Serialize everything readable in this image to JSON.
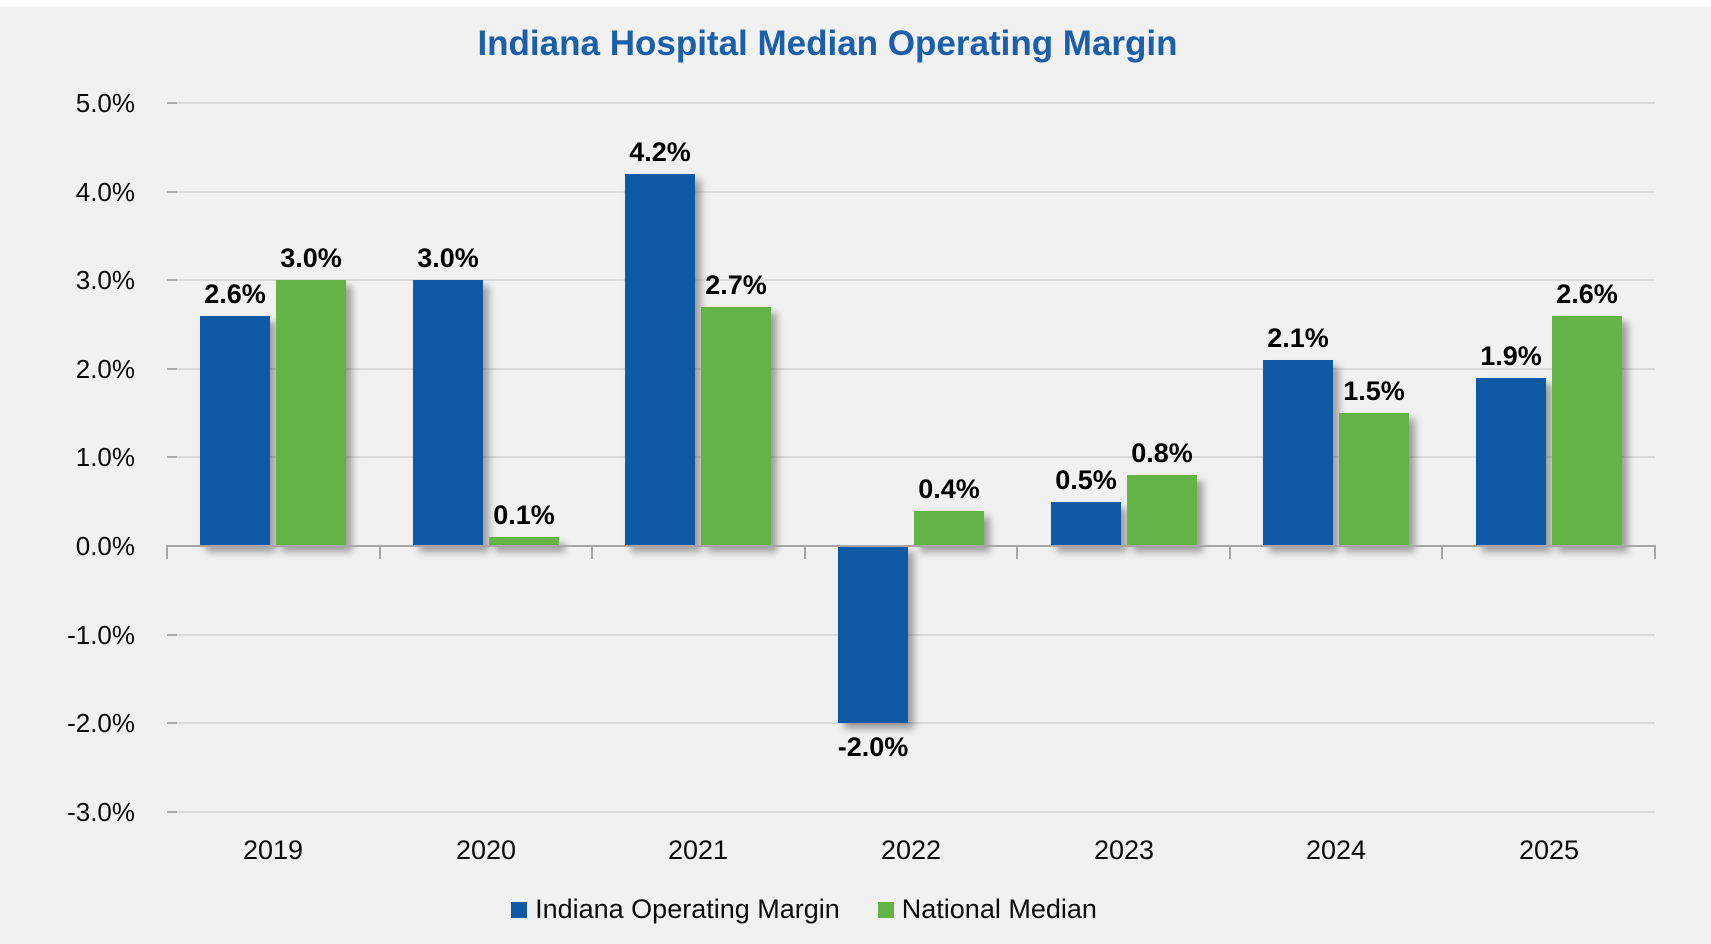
{
  "chart_data": {
    "type": "bar",
    "title": "Indiana Hospital Median Operating Margin",
    "categories": [
      "2019",
      "2020",
      "2021",
      "2022",
      "2023",
      "2024",
      "2025"
    ],
    "series": [
      {
        "name": "Indiana Operating Margin",
        "color": "#0E59A6",
        "values": [
          2.6,
          3.0,
          4.2,
          -2.0,
          0.5,
          2.1,
          1.9
        ],
        "labels": [
          "2.6%",
          "3.0%",
          "4.2%",
          "-2.0%",
          "0.5%",
          "2.1%",
          "1.9%"
        ]
      },
      {
        "name": "National Median",
        "color": "#63B347",
        "values": [
          3.0,
          0.1,
          2.7,
          0.4,
          0.8,
          1.5,
          2.6
        ],
        "labels": [
          "3.0%",
          "0.1%",
          "2.7%",
          "0.4%",
          "0.8%",
          "1.5%",
          "2.6%"
        ]
      }
    ],
    "y_axis": {
      "ticks": [
        "5.0%",
        "4.0%",
        "3.0%",
        "2.0%",
        "1.0%",
        "0.0%",
        "-1.0%",
        "-2.0%",
        "-3.0%"
      ],
      "tick_values": [
        5,
        4,
        3,
        2,
        1,
        0,
        -1,
        -2,
        -3
      ],
      "min": -3,
      "max": 5
    },
    "grid": true,
    "legend_position": "bottom",
    "colors": {
      "title": "#1B5EA9",
      "background": "#F1F1F1",
      "gridline": "#DADADA",
      "axis": "#A6A6A6",
      "label_text": "#000000"
    }
  }
}
